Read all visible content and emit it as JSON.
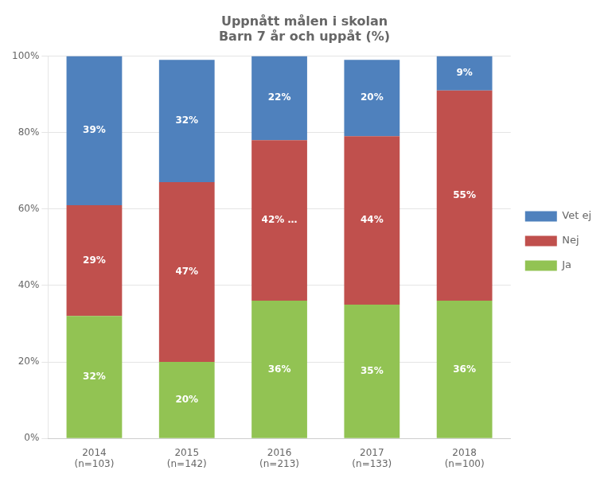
{
  "chart_data": {
    "type": "bar",
    "title": "Uppnått målen i skolan\nBarn 7 år och uppåt (%)",
    "categories": [
      "2014\n(n=103)",
      "2015\n(n=142)",
      "2016\n(n=213)",
      "2017\n(n=133)",
      "2018\n(n=100)"
    ],
    "series": [
      {
        "name": "Ja",
        "color": "#92c353",
        "values": [
          32,
          20,
          36,
          35,
          36
        ],
        "value_labels": [
          "32%",
          "20%",
          "36%",
          "35%",
          "36%"
        ]
      },
      {
        "name": "Nej",
        "color": "#c0504d",
        "values": [
          29,
          47,
          42,
          44,
          55
        ],
        "value_labels": [
          "29%",
          "47%",
          "42% …",
          "44%",
          "55%"
        ]
      },
      {
        "name": "Vet ej",
        "color": "#4f81bd",
        "values": [
          39,
          32,
          22,
          20,
          9
        ],
        "value_labels": [
          "39%",
          "32%",
          "22%",
          "20%",
          "9%"
        ]
      }
    ],
    "ylim": [
      0,
      100
    ],
    "yticks": [
      {
        "value": 0,
        "label": "0%"
      },
      {
        "value": 20,
        "label": "20%"
      },
      {
        "value": 40,
        "label": "40%"
      },
      {
        "value": 60,
        "label": "60%"
      },
      {
        "value": 80,
        "label": "80%"
      },
      {
        "value": 100,
        "label": "100%"
      }
    ],
    "stacked": true,
    "grid": true,
    "legend": "right",
    "data_labels": true
  }
}
